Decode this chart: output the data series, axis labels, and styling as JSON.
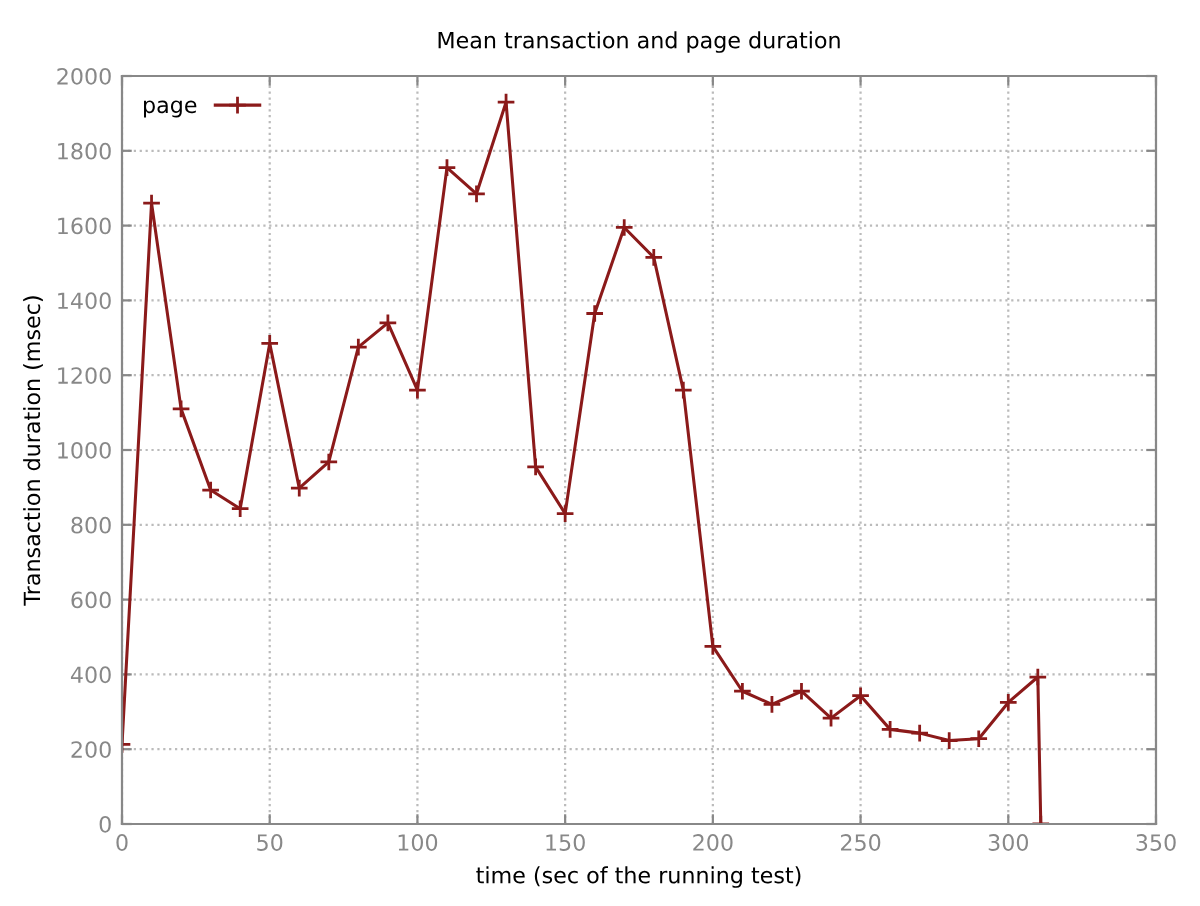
{
  "chart_data": {
    "type": "line",
    "title": "Mean transaction and page duration",
    "xlabel": "time (sec of the running test)",
    "ylabel": "Transaction duration (msec)",
    "x": [
      0,
      10,
      20,
      30,
      40,
      50,
      60,
      70,
      80,
      90,
      100,
      110,
      120,
      130,
      140,
      150,
      160,
      170,
      180,
      190,
      200,
      210,
      220,
      230,
      240,
      250,
      260,
      270,
      280,
      290,
      300,
      310,
      311
    ],
    "series": [
      {
        "name": "page",
        "color": "#8b1a1a",
        "values": [
          213,
          1660,
          1110,
          893,
          843,
          1285,
          898,
          968,
          1275,
          1340,
          1160,
          1755,
          1685,
          1930,
          955,
          830,
          1365,
          1595,
          1515,
          1160,
          475,
          355,
          320,
          355,
          283,
          343,
          253,
          243,
          223,
          228,
          325,
          393,
          0
        ]
      }
    ],
    "xlim": [
      0,
      350
    ],
    "xticks": [
      0,
      50,
      100,
      150,
      200,
      250,
      300,
      350
    ],
    "ylim": [
      0,
      2000
    ],
    "yticks": [
      0,
      200,
      400,
      600,
      800,
      1000,
      1200,
      1400,
      1600,
      1800,
      2000
    ],
    "grid": true,
    "legend": "top left",
    "marker": "cross",
    "line_style": "solid"
  }
}
